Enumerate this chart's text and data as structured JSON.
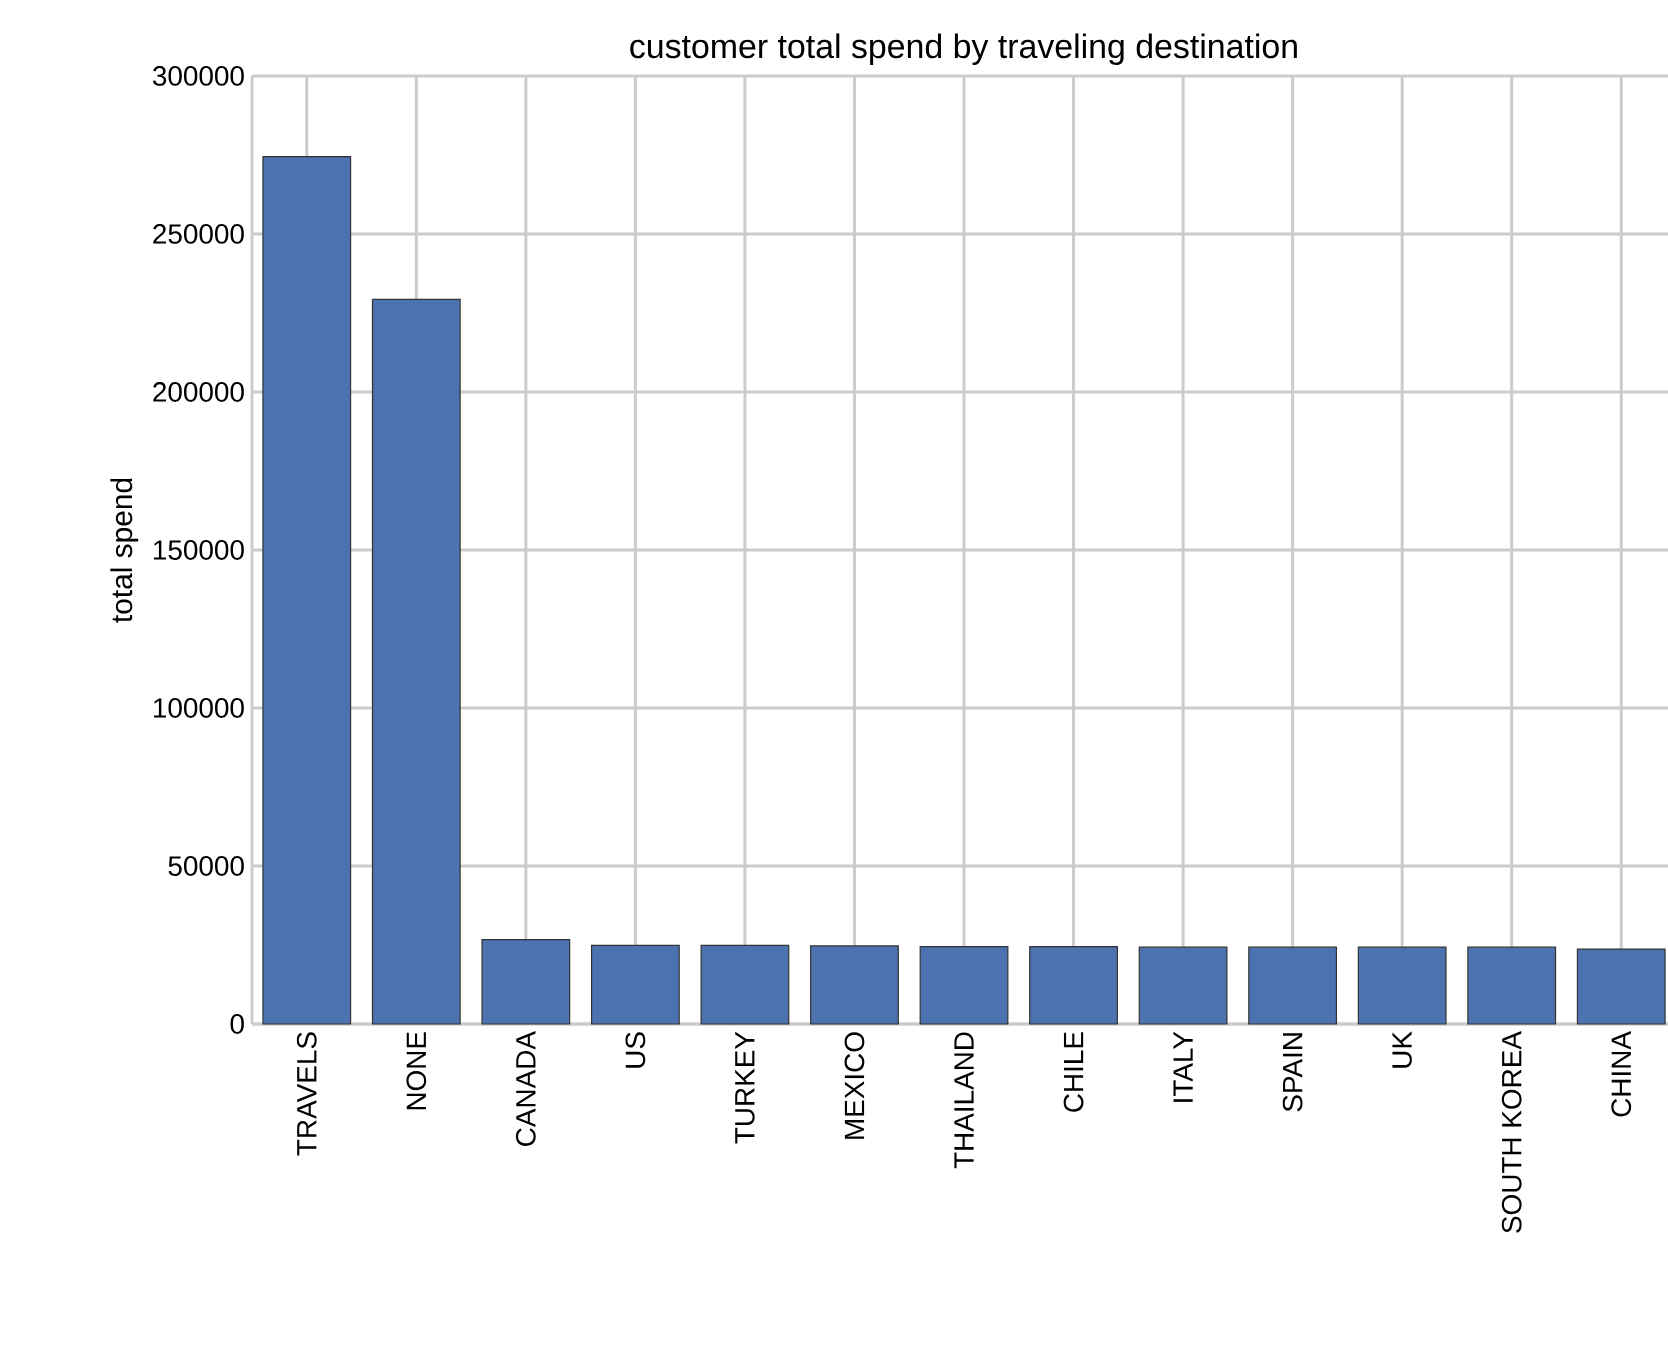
{
  "chart_data": {
    "type": "bar",
    "title": "customer total spend by traveling destination",
    "ylabel": "total spend",
    "categories": [
      "TRAVELS",
      "NONE",
      "CANADA",
      "US",
      "TURKEY",
      "MEXICO",
      "THAILAND",
      "CHILE",
      "ITALY",
      "SPAIN",
      "UK",
      "SOUTH KOREA",
      "CHINA"
    ],
    "values": [
      274500,
      229300,
      26700,
      24900,
      24900,
      24700,
      24500,
      24500,
      24300,
      24300,
      24300,
      24300,
      23700
    ],
    "color": "#4c72b0",
    "ylim": [
      0,
      300000
    ],
    "yticks": [
      0,
      50000,
      100000,
      150000,
      200000,
      250000,
      300000
    ],
    "grid": true
  }
}
